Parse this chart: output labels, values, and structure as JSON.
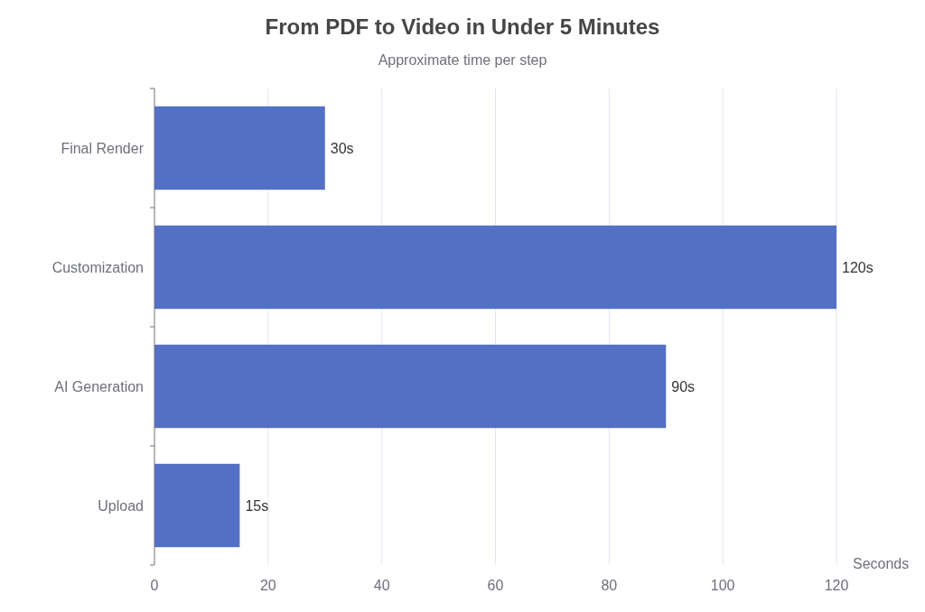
{
  "chart_data": {
    "type": "bar",
    "orientation": "horizontal",
    "title": "From PDF to Video in Under 5 Minutes",
    "subtitle": "Approximate time per step",
    "xlabel": "Seconds",
    "categories": [
      "Final Render",
      "Customization",
      "AI Generation",
      "Upload"
    ],
    "values": [
      30,
      120,
      90,
      15
    ],
    "value_labels": [
      "30s",
      "120s",
      "90s",
      "15s"
    ],
    "color": "#5470c6",
    "xlim": [
      0,
      120
    ],
    "xticks": [
      0,
      20,
      40,
      60,
      80,
      100,
      120
    ],
    "grid": "x"
  }
}
